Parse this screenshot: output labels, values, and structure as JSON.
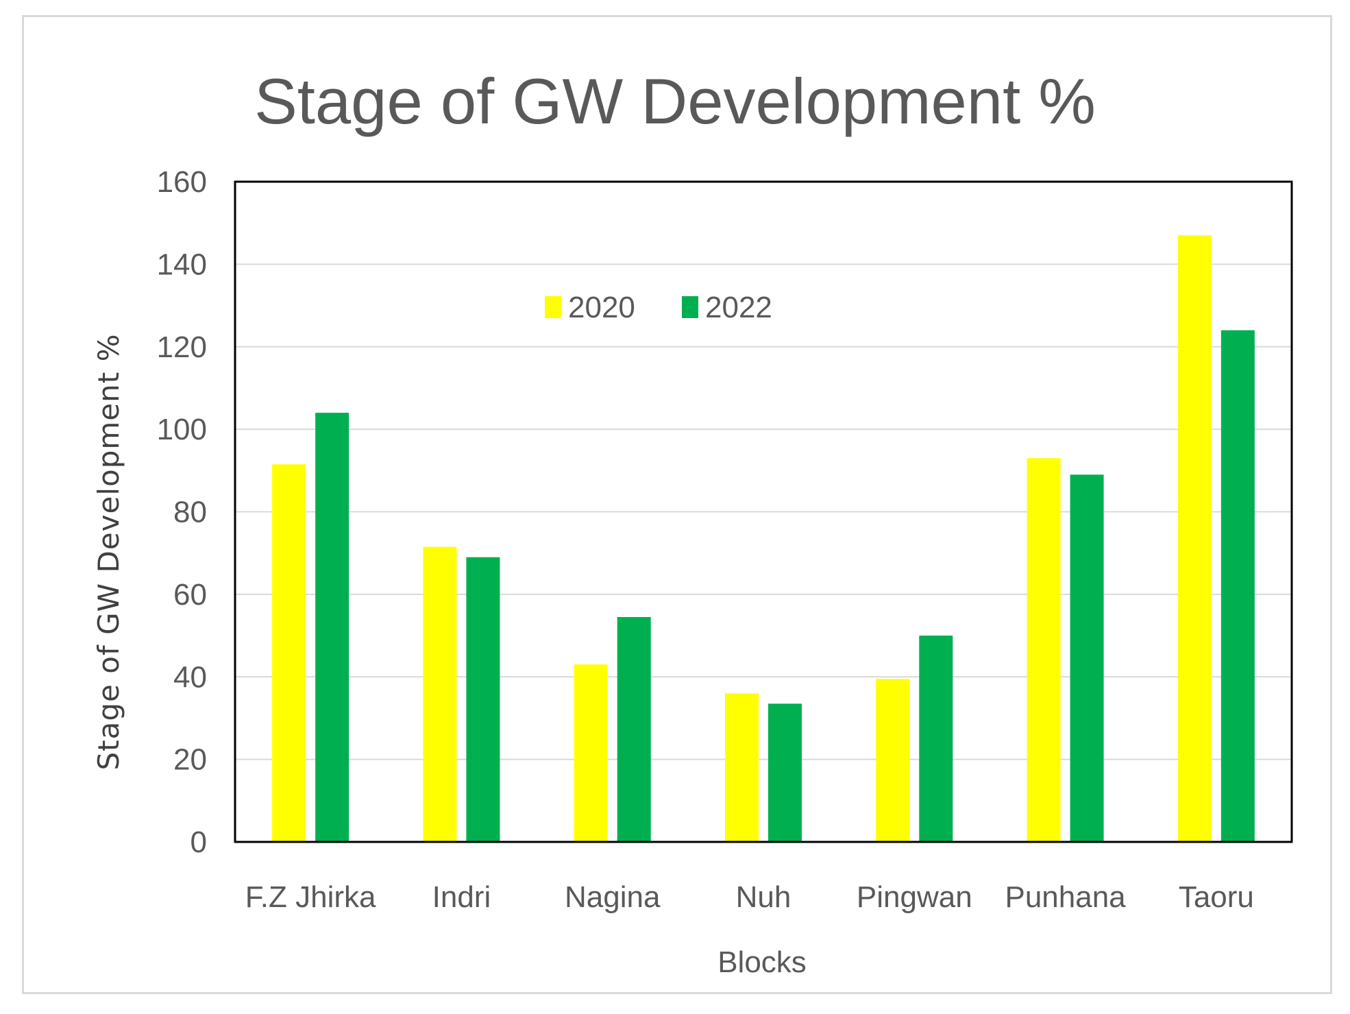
{
  "chart_data": {
    "type": "bar",
    "title": "Stage of GW Development %",
    "xlabel": "Blocks",
    "ylabel": "Stage of GW Development %",
    "categories": [
      "F.Z Jhirka",
      "Indri",
      "Nagina",
      "Nuh",
      "Pingwan",
      "Punhana",
      "Taoru"
    ],
    "series": [
      {
        "name": "2020",
        "color": "#ffff00",
        "values": [
          91.5,
          71.5,
          43,
          36,
          39.5,
          93,
          147
        ]
      },
      {
        "name": "2022",
        "color": "#00b050",
        "values": [
          104,
          69,
          54.5,
          33.5,
          50,
          89,
          124
        ]
      }
    ],
    "ylim": [
      0,
      160
    ],
    "yticks": [
      0,
      20,
      40,
      60,
      80,
      100,
      120,
      140,
      160
    ],
    "grid": true,
    "legend_position": "top-center"
  }
}
